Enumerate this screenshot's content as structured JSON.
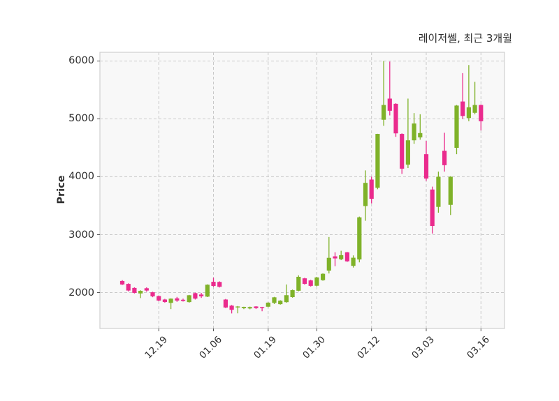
{
  "title": "레이저쎌, 최근 3개월",
  "chart_data": {
    "type": "candlestick",
    "title": "레이저쎌, 최근 3개월",
    "ylabel": "Price",
    "ylim": [
      1380,
      6150
    ],
    "y_ticks": [
      2000,
      3000,
      4000,
      5000,
      6000
    ],
    "x_tick_labels": [
      "12.19",
      "01.06",
      "01.19",
      "01.30",
      "02.12",
      "03.03",
      "03.16"
    ],
    "x_tick_indices": [
      6,
      15,
      24,
      32,
      41,
      50,
      59
    ],
    "grid": "dashed",
    "legend": "none",
    "up_color": "#7fb229",
    "down_color": "#ea2b8d",
    "grid_color": "#c9c9c9",
    "border_color": "#cfcfcf",
    "plot_bg": "#f8f8f8",
    "candles_format": "[open, high, low, close]",
    "candles": [
      [
        2200,
        2215,
        2130,
        2140
      ],
      [
        2150,
        2160,
        2020,
        2035
      ],
      [
        2080,
        2090,
        1985,
        1995
      ],
      [
        1985,
        2040,
        1905,
        2030
      ],
      [
        2075,
        2090,
        2015,
        2035
      ],
      [
        2005,
        2015,
        1920,
        1935
      ],
      [
        1940,
        1950,
        1850,
        1862
      ],
      [
        1880,
        1892,
        1825,
        1838
      ],
      [
        1822,
        1900,
        1715,
        1895
      ],
      [
        1900,
        1925,
        1840,
        1862
      ],
      [
        1876,
        1895,
        1845,
        1856
      ],
      [
        1836,
        1960,
        1826,
        1954
      ],
      [
        1990,
        2000,
        1880,
        1896
      ],
      [
        1966,
        1994,
        1908,
        1936
      ],
      [
        1930,
        2142,
        1922,
        2136
      ],
      [
        2186,
        2258,
        2100,
        2114
      ],
      [
        2184,
        2194,
        2088,
        2100
      ],
      [
        1880,
        1890,
        1732,
        1742
      ],
      [
        1774,
        1786,
        1640,
        1702
      ],
      [
        1744,
        1768,
        1642,
        1760
      ],
      [
        1730,
        1756,
        1714,
        1752
      ],
      [
        1726,
        1758,
        1712,
        1750
      ],
      [
        1760,
        1766,
        1716,
        1732
      ],
      [
        1748,
        1754,
        1678,
        1736
      ],
      [
        1756,
        1834,
        1746,
        1826
      ],
      [
        1822,
        1926,
        1802,
        1918
      ],
      [
        1800,
        1868,
        1792,
        1860
      ],
      [
        1835,
        2140,
        1825,
        1955
      ],
      [
        1922,
        2052,
        1912,
        2042
      ],
      [
        2032,
        2298,
        2022,
        2272
      ],
      [
        2246,
        2256,
        2138,
        2150
      ],
      [
        2210,
        2222,
        2104,
        2116
      ],
      [
        2118,
        2272,
        2106,
        2262
      ],
      [
        2214,
        2332,
        2204,
        2324
      ],
      [
        2380,
        2960,
        2330,
        2600
      ],
      [
        2626,
        2696,
        2456,
        2590
      ],
      [
        2576,
        2722,
        2560,
        2646
      ],
      [
        2696,
        2702,
        2530,
        2540
      ],
      [
        2462,
        2642,
        2432,
        2602
      ],
      [
        2572,
        3312,
        2522,
        3300
      ],
      [
        3495,
        4110,
        3240,
        3895
      ],
      [
        3952,
        4002,
        3540,
        3620
      ],
      [
        3810,
        4742,
        3785,
        4740
      ],
      [
        4985,
        6000,
        4880,
        5240
      ],
      [
        5350,
        5990,
        5060,
        5140
      ],
      [
        5260,
        5270,
        4690,
        4750
      ],
      [
        4740,
        4750,
        4050,
        4140
      ],
      [
        4210,
        5350,
        4150,
        4630
      ],
      [
        4630,
        5100,
        4570,
        4920
      ],
      [
        4680,
        5080,
        4640,
        4755
      ],
      [
        4390,
        4620,
        3930,
        3970
      ],
      [
        3780,
        3830,
        3020,
        3150
      ],
      [
        3480,
        4090,
        3380,
        4000
      ],
      [
        4450,
        4760,
        4090,
        4200
      ],
      [
        3515,
        4010,
        3340,
        4000
      ],
      [
        4500,
        5240,
        4390,
        5230
      ],
      [
        5300,
        5790,
        5000,
        5050
      ],
      [
        5015,
        5930,
        4960,
        5200
      ],
      [
        5105,
        5640,
        5080,
        5240
      ],
      [
        5240,
        5250,
        4800,
        4960
      ]
    ]
  }
}
